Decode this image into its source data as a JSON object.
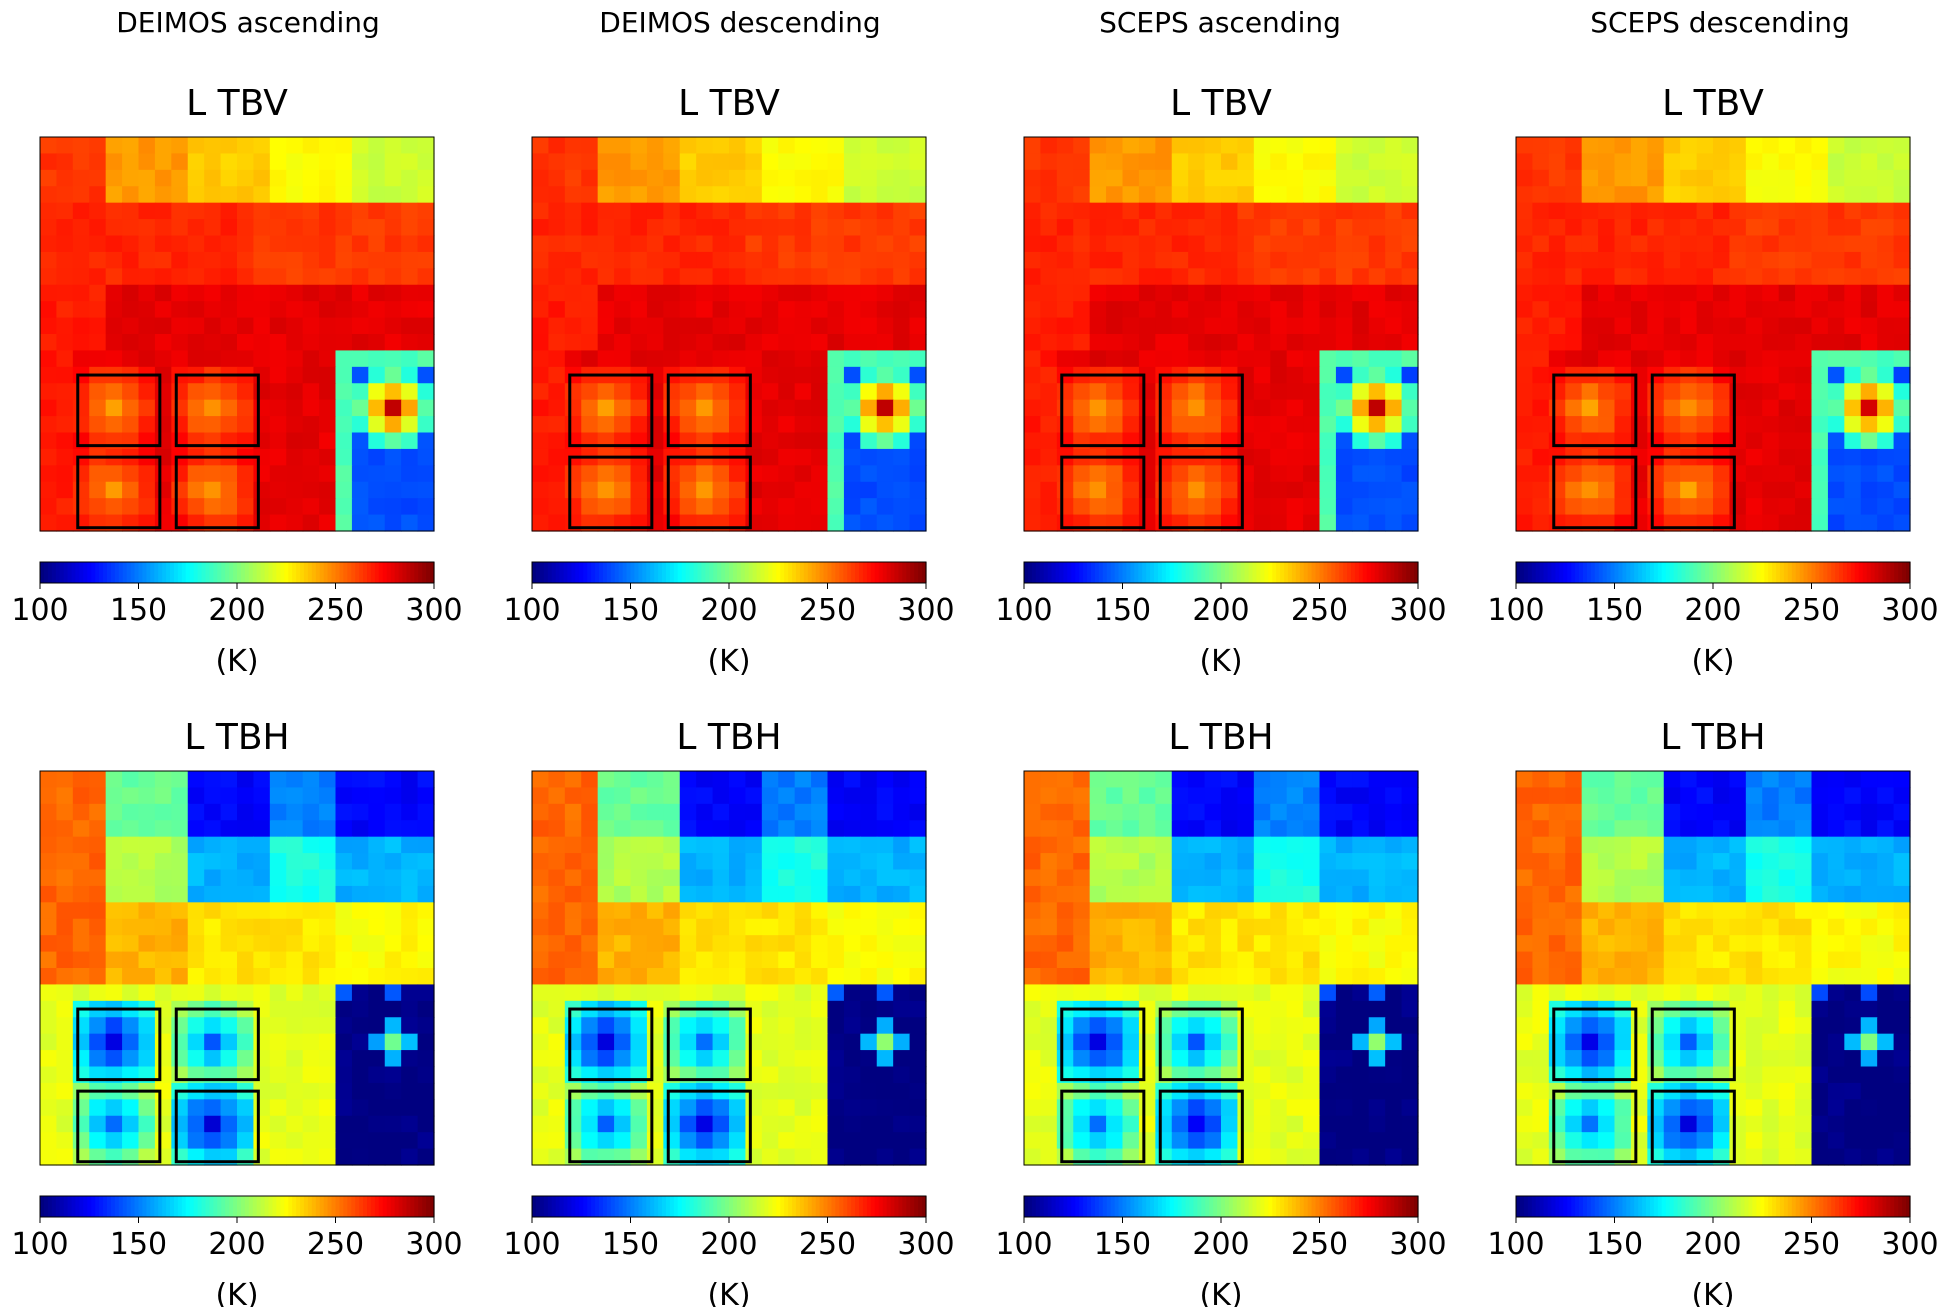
{
  "figure": {
    "columns": [
      "DEIMOS ascending",
      "DEIMOS descending",
      "SCEPS ascending",
      "SCEPS descending"
    ]
  },
  "chart_data": {
    "type": "heatmap",
    "colormap": "jet",
    "grid": "off",
    "panels": [
      {
        "row": 0,
        "title": "L TBV",
        "variant": "TBV",
        "dataset": "DEIMOS ascending"
      },
      {
        "row": 0,
        "title": "L TBV",
        "variant": "TBV",
        "dataset": "DEIMOS descending"
      },
      {
        "row": 0,
        "title": "L TBV",
        "variant": "TBV",
        "dataset": "SCEPS ascending"
      },
      {
        "row": 0,
        "title": "L TBV",
        "variant": "TBV",
        "dataset": "SCEPS descending"
      },
      {
        "row": 1,
        "title": "L TBH",
        "variant": "TBH",
        "dataset": "DEIMOS ascending"
      },
      {
        "row": 1,
        "title": "L TBH",
        "variant": "TBH",
        "dataset": "DEIMOS descending"
      },
      {
        "row": 1,
        "title": "L TBH",
        "variant": "TBH",
        "dataset": "SCEPS ascending"
      },
      {
        "row": 1,
        "title": "L TBH",
        "variant": "TBH",
        "dataset": "SCEPS descending"
      }
    ],
    "colorbar": {
      "range": [
        100,
        300
      ],
      "ticks": [
        100,
        150,
        200,
        250,
        300
      ],
      "label": "(K)"
    },
    "grid_size": [
      24,
      24
    ],
    "values_K": {
      "TBV": {
        "top_bands": [
          265,
          245,
          235,
          225,
          215
        ],
        "mid_rows": [
          268,
          270
        ],
        "lower_region": 280,
        "lower_left_strip": 270,
        "box_background": 275,
        "box_hotspot_center": 245,
        "water": 140,
        "water_edge": 190,
        "water_hotspot": 285
      },
      "TBH": {
        "left_strip": 255,
        "top_bands": [
          195,
          125,
          150,
          125
        ],
        "second_row": [
          210,
          160,
          180,
          160
        ],
        "third_row": [
          240,
          230,
          230,
          225
        ],
        "lower_region": 220,
        "box_background": 190,
        "box_cold_center": 120,
        "water": 100,
        "water_hotspot": 200
      }
    },
    "boxes": "two 2x1 rectangle pairs outlined in lower-left quadrant of each panel"
  }
}
